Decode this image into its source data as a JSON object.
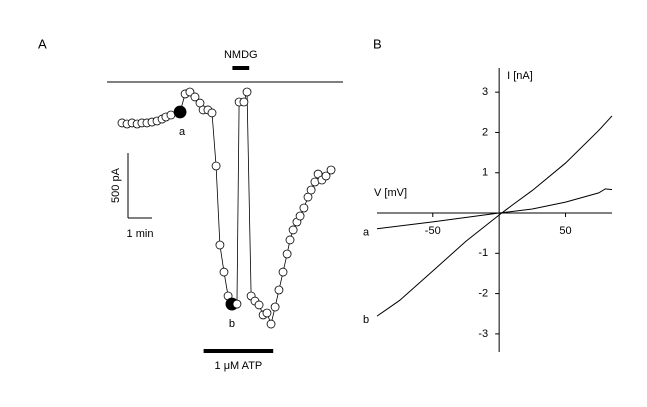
{
  "chart_data": [
    {
      "type": "timecourse",
      "panel": "A",
      "x": [
        0.0,
        0.21,
        0.42,
        0.63,
        0.83,
        1.04,
        1.25,
        1.46,
        1.67,
        1.83,
        2.04,
        2.42,
        2.63,
        2.83,
        3.04,
        3.25,
        3.38,
        3.58,
        3.75,
        3.92,
        4.08,
        4.25,
        4.42,
        4.58,
        4.79,
        4.88,
        5.08,
        5.21,
        5.38,
        5.54,
        5.71,
        5.88,
        6.04,
        6.21,
        6.38,
        6.54,
        6.71,
        6.88,
        7.0,
        7.13,
        7.29,
        7.42,
        7.58,
        7.75,
        7.88,
        8.04,
        8.17,
        8.33,
        8.5,
        8.71
      ],
      "values": [
        -315,
        -323,
        -315,
        -323,
        -315,
        -315,
        -308,
        -300,
        -285,
        -269,
        -254,
        -231,
        -92,
        -77,
        -115,
        -162,
        -215,
        -215,
        -238,
        -646,
        -1254,
        -1462,
        -1646,
        -1708,
        -1708,
        -154,
        -154,
        -77,
        -1646,
        -1685,
        -1715,
        -1792,
        -1777,
        -1862,
        -1731,
        -1600,
        -1462,
        -1323,
        -1215,
        -1138,
        -1077,
        -1031,
        -969,
        -885,
        -831,
        -769,
        -708,
        -754,
        -723,
        -677
      ],
      "point_labels": [
        null,
        null,
        null,
        null,
        null,
        null,
        null,
        null,
        null,
        null,
        null,
        "a",
        null,
        null,
        null,
        null,
        null,
        null,
        null,
        null,
        null,
        null,
        null,
        "b",
        null,
        null,
        null,
        null,
        null,
        null,
        null,
        null,
        null,
        null,
        null,
        null,
        null,
        null,
        null,
        null,
        null,
        null,
        null,
        null,
        null,
        null,
        null,
        null,
        null,
        null
      ],
      "applications": [
        {
          "label": "NMDG",
          "start": 4.6,
          "end": 5.3,
          "side": "top"
        },
        {
          "label": "1 μM ATP",
          "start": 3.4,
          "end": 6.3,
          "side": "bottom"
        }
      ],
      "y_scale": {
        "value": 500,
        "label": "500 pA"
      },
      "x_scale": {
        "value": 1,
        "label": "1 min"
      }
    },
    {
      "type": "line",
      "panel": "B",
      "xlabel": "V [mV]",
      "ylabel": "I [nA]",
      "xlim": [
        -92,
        85
      ],
      "ylim": [
        -3.45,
        3.6
      ],
      "xticks": [
        -50,
        50
      ],
      "yticks": [
        -3,
        -2,
        -1,
        1,
        2,
        3
      ],
      "series": [
        {
          "name": "a",
          "color": "#000000",
          "x": [
            -92,
            -50,
            0,
            25,
            50,
            75,
            80,
            85
          ],
          "values": [
            -0.39,
            -0.22,
            0,
            0.1,
            0.27,
            0.5,
            0.6,
            0.58
          ]
        },
        {
          "name": "b",
          "color": "#000000",
          "x": [
            -92,
            -75,
            -50,
            -25,
            0,
            10,
            25,
            50,
            75,
            85
          ],
          "values": [
            -2.56,
            -2.17,
            -1.44,
            -0.7,
            -0.05,
            0.2,
            0.56,
            1.24,
            2.05,
            2.41
          ]
        }
      ]
    }
  ]
}
